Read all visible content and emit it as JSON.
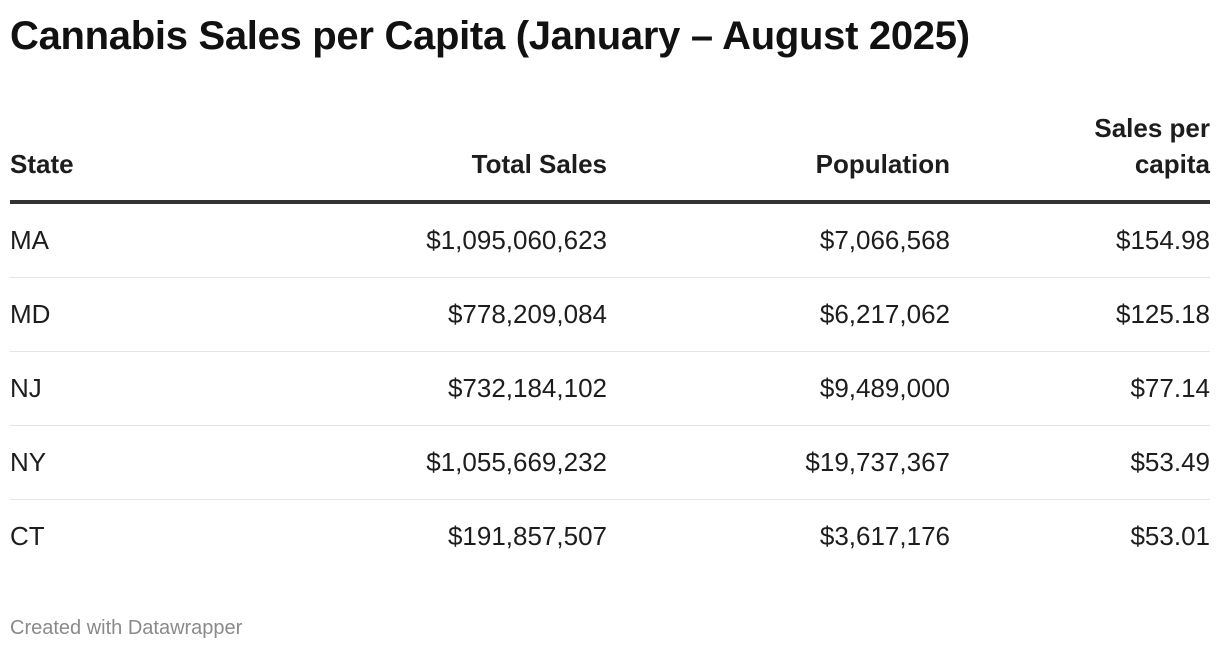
{
  "title": "Cannabis Sales per Capita (January – August 2025)",
  "footer": "Created with Datawrapper",
  "chart_data": {
    "type": "table",
    "title": "Cannabis Sales per Capita (January – August 2025)",
    "columns": [
      {
        "key": "state",
        "label": "State",
        "align": "left"
      },
      {
        "key": "total_sales",
        "label": "Total Sales",
        "align": "right"
      },
      {
        "key": "population",
        "label": "Population",
        "align": "right"
      },
      {
        "key": "sales_per_capita",
        "label_lines": [
          "Sales per",
          "capita"
        ],
        "align": "right"
      }
    ],
    "rows": [
      {
        "state": "MA",
        "total_sales": "$1,095,060,623",
        "population": "$7,066,568",
        "sales_per_capita": "$154.98"
      },
      {
        "state": "MD",
        "total_sales": "$778,209,084",
        "population": "$6,217,062",
        "sales_per_capita": "$125.18"
      },
      {
        "state": "NJ",
        "total_sales": "$732,184,102",
        "population": "$9,489,000",
        "sales_per_capita": "$77.14"
      },
      {
        "state": "NY",
        "total_sales": "$1,055,669,232",
        "population": "$19,737,367",
        "sales_per_capita": "$53.49"
      },
      {
        "state": "CT",
        "total_sales": "$191,857,507",
        "population": "$3,617,176",
        "sales_per_capita": "$53.01"
      }
    ]
  }
}
